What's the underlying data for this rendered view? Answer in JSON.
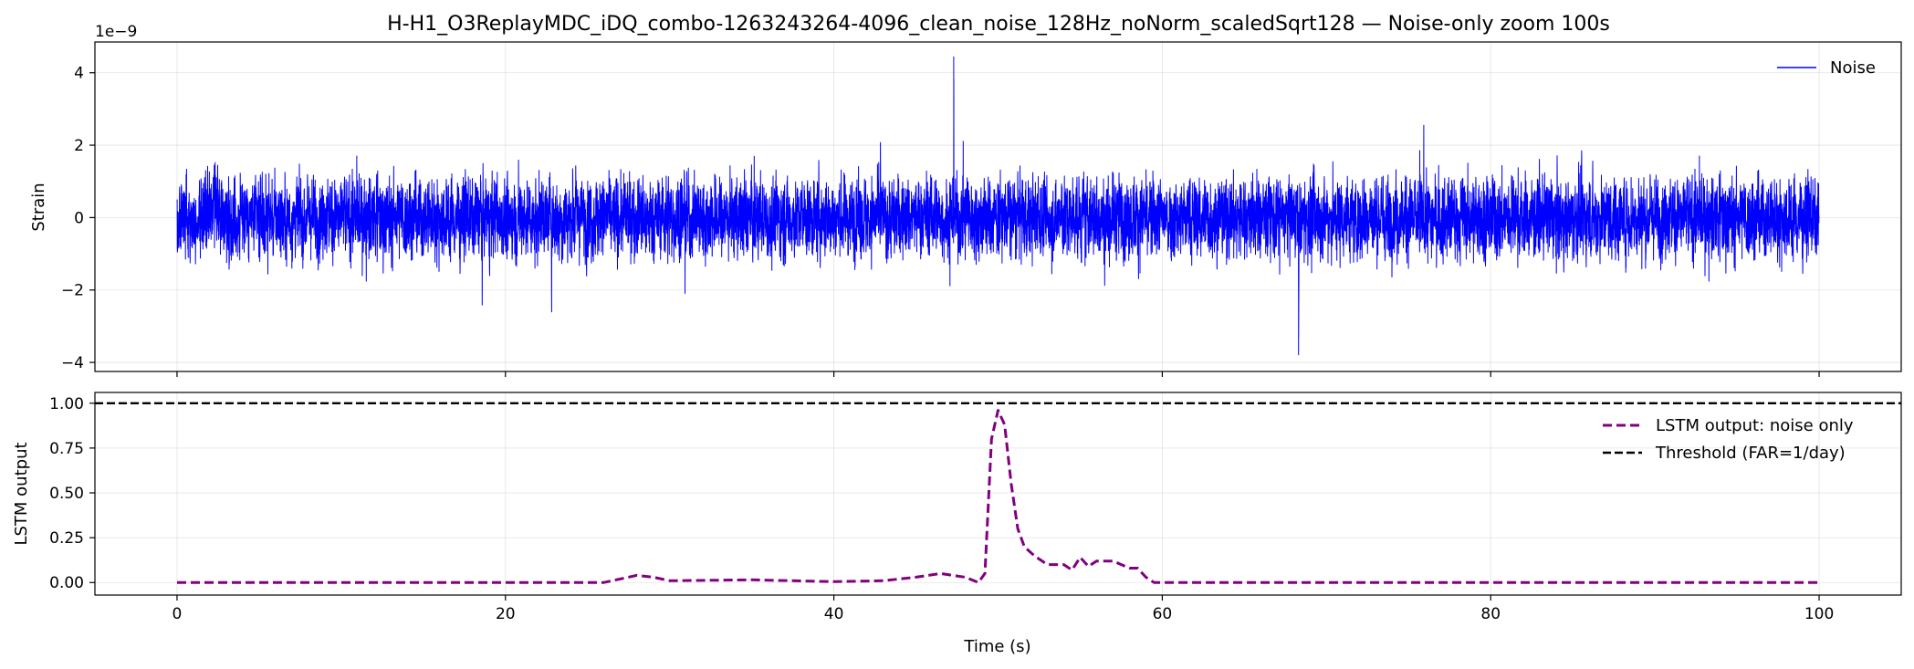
{
  "chart_data": [
    {
      "type": "line",
      "title": "H-H1_O3ReplayMDC_iDQ_combo-1263243264-4096_clean_noise_128Hz_noNorm_scaledSqrt128 — Noise-only zoom 100s",
      "xlabel": "",
      "ylabel": "Strain",
      "offset_text": "1e−9",
      "xlim": [
        -5,
        105
      ],
      "ylim": [
        -4.25,
        4.85
      ],
      "x_ticks": [
        0,
        20,
        40,
        60,
        80,
        100
      ],
      "y_ticks": [
        -4,
        -2,
        0,
        2,
        4
      ],
      "y_tick_labels": [
        "−4",
        "−2",
        "0",
        "2",
        "4"
      ],
      "grid": true,
      "legend_position": "top-right",
      "series": [
        {
          "name": "Noise",
          "color": "#0000ff",
          "style": "solid",
          "sample_rate_hz": 128,
          "x_range": [
            0,
            100
          ],
          "approx_envelope": [
            -3.8,
            4.45
          ],
          "peak": {
            "x": 47.3,
            "y": 4.45
          },
          "trough": {
            "x": 68.3,
            "y": -3.8
          }
        }
      ]
    },
    {
      "type": "line",
      "title": "",
      "xlabel": "Time (s)",
      "ylabel": "LSTM output",
      "xlim": [
        -5,
        105
      ],
      "ylim": [
        -0.07,
        1.06
      ],
      "x_ticks": [
        0,
        20,
        40,
        60,
        80,
        100
      ],
      "x_tick_labels": [
        "0",
        "20",
        "40",
        "60",
        "80",
        "100"
      ],
      "y_ticks": [
        0.0,
        0.25,
        0.5,
        0.75,
        1.0
      ],
      "y_tick_labels": [
        "0.00",
        "0.25",
        "0.50",
        "0.75",
        "1.00"
      ],
      "grid": true,
      "legend_position": "top-right",
      "series": [
        {
          "name": "LSTM output: noise only",
          "color": "#800080",
          "style": "dashed",
          "x": [
            0,
            26,
            27,
            28,
            29,
            30,
            35,
            40,
            43,
            45,
            46.5,
            48,
            48.8,
            49.2,
            49.6,
            50.0,
            50.4,
            50.8,
            51.2,
            51.6,
            52.2,
            53,
            54,
            54.5,
            55,
            55.5,
            56,
            57,
            58,
            58.5,
            59,
            59.5,
            60,
            65,
            100
          ],
          "y": [
            0.0,
            0.0,
            0.02,
            0.04,
            0.03,
            0.01,
            0.015,
            0.005,
            0.01,
            0.03,
            0.05,
            0.03,
            0.0,
            0.05,
            0.8,
            0.96,
            0.88,
            0.55,
            0.3,
            0.2,
            0.15,
            0.1,
            0.1,
            0.07,
            0.14,
            0.09,
            0.12,
            0.12,
            0.08,
            0.08,
            0.03,
            0.0,
            0.0,
            0.0,
            0.0
          ]
        },
        {
          "name": "Threshold (FAR=1/day)",
          "color": "#000000",
          "style": "dashed",
          "y_constant": 1.0
        }
      ]
    }
  ]
}
